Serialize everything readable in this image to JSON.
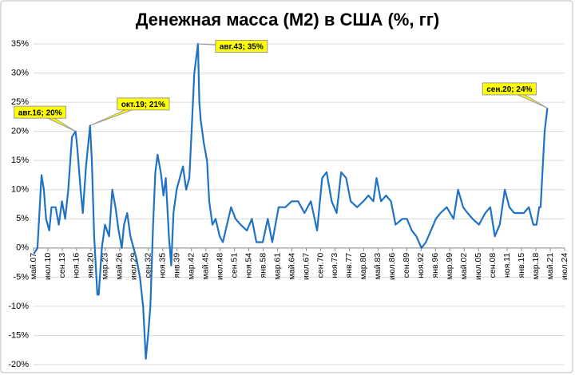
{
  "chart_data": {
    "type": "line",
    "title": "Денежная масса (M2) в США (%, гг)",
    "series": [
      {
        "color": "#1f72c4",
        "x": [
          1907.4,
          1908.2,
          1909.1,
          1909.6,
          1910.1,
          1910.8,
          1911.3,
          1912.2,
          1912.9,
          1913.6,
          1914.3,
          1915.0,
          1915.8,
          1916.6,
          1917.0,
          1917.7,
          1918.2,
          1918.9,
          1919.8,
          1920.2,
          1920.7,
          1921.4,
          1921.7,
          1922.4,
          1923.1,
          1924.0,
          1924.7,
          1925.4,
          1926.1,
          1926.8,
          1927.3,
          1928.0,
          1928.7,
          1929.4,
          1930.1,
          1930.8,
          1931.5,
          1932.1,
          1932.6,
          1933.1,
          1933.7,
          1934.2,
          1934.7,
          1935.4,
          1936.0,
          1936.5,
          1937.2,
          1937.7,
          1938.2,
          1938.9,
          1939.6,
          1940.3,
          1941.0,
          1941.7,
          1942.2,
          1942.8,
          1943.6,
          1943.9,
          1944.2,
          1944.9,
          1945.6,
          1946.1,
          1946.8,
          1947.5,
          1948.4,
          1949.1,
          1950.0,
          1950.9,
          1951.9,
          1953.0,
          1954.4,
          1955.5,
          1956.5,
          1957.9,
          1959.0,
          1960.0,
          1961.4,
          1962.9,
          1964.3,
          1965.7,
          1967.1,
          1968.5,
          1969.9,
          1971.0,
          1972.0,
          1973.1,
          1974.2,
          1975.2,
          1976.3,
          1977.3,
          1978.7,
          1980.1,
          1981.2,
          1982.3,
          1983.0,
          1984.0,
          1985.1,
          1986.2,
          1987.2,
          1988.7,
          1989.7,
          1990.8,
          1991.8,
          1992.9,
          1993.9,
          1995.0,
          1996.1,
          1997.1,
          1998.5,
          2000.0,
          2001.0,
          2002.1,
          2003.1,
          2004.2,
          2005.6,
          2007.0,
          2008.1,
          2009.1,
          2010.2,
          2011.3,
          2012.3,
          2013.4,
          2014.5,
          2015.5,
          2016.6,
          2017.6,
          2018.3,
          2018.9,
          2019.2,
          2020.1,
          2020.7
        ],
        "values": [
          -1,
          0,
          12.5,
          10,
          5,
          3,
          7,
          7,
          4,
          8,
          5,
          10,
          19,
          20,
          17,
          10,
          6,
          14,
          21,
          15,
          2,
          -8,
          -8,
          0,
          4,
          2,
          10,
          7,
          3,
          0,
          4,
          6,
          2,
          0,
          -2,
          -5,
          -10,
          -19,
          -15,
          -10,
          4,
          13,
          16,
          13,
          9,
          12,
          2,
          -3,
          6,
          10,
          12,
          14,
          10,
          12,
          20,
          30,
          35,
          25,
          22,
          18,
          15,
          8,
          4,
          5,
          2,
          1,
          4,
          7,
          5,
          4,
          3,
          5,
          1,
          1,
          5,
          1,
          7,
          7,
          8,
          8,
          6,
          8,
          3,
          12,
          13,
          8,
          6,
          13,
          12,
          8,
          7,
          8,
          9,
          8,
          12,
          8,
          9,
          8,
          4,
          5,
          5,
          3,
          2,
          0,
          1,
          3,
          5,
          6,
          7,
          5,
          10,
          7,
          6,
          5,
          4,
          6,
          7,
          2,
          4,
          10,
          7,
          6,
          6,
          6,
          7,
          4,
          4,
          7,
          7,
          20,
          24
        ]
      }
    ],
    "xlim": [
      1907.33,
      2024.5
    ],
    "xticks": [
      {
        "value": 1907.33,
        "label": "май.07"
      },
      {
        "value": 1910.5,
        "label": "июл.10"
      },
      {
        "value": 1913.67,
        "label": "сен.13"
      },
      {
        "value": 1916.83,
        "label": "ноя.16"
      },
      {
        "value": 1920.0,
        "label": "янв.20"
      },
      {
        "value": 1923.17,
        "label": "мар.23"
      },
      {
        "value": 1926.33,
        "label": "май.26"
      },
      {
        "value": 1929.5,
        "label": "июл.29"
      },
      {
        "value": 1932.67,
        "label": "сен.32"
      },
      {
        "value": 1935.83,
        "label": "ноя.35"
      },
      {
        "value": 1939.0,
        "label": "янв.39"
      },
      {
        "value": 1942.17,
        "label": "мар.42"
      },
      {
        "value": 1945.33,
        "label": "май.45"
      },
      {
        "value": 1948.5,
        "label": "июл.48"
      },
      {
        "value": 1951.67,
        "label": "сен.51"
      },
      {
        "value": 1954.83,
        "label": "ноя.54"
      },
      {
        "value": 1958.0,
        "label": "янв.58"
      },
      {
        "value": 1961.17,
        "label": "мар.61"
      },
      {
        "value": 1964.33,
        "label": "май.64"
      },
      {
        "value": 1967.5,
        "label": "июл.67"
      },
      {
        "value": 1970.67,
        "label": "сен.70"
      },
      {
        "value": 1973.83,
        "label": "ноя.73"
      },
      {
        "value": 1977.0,
        "label": "янв.77"
      },
      {
        "value": 1980.17,
        "label": "мар.80"
      },
      {
        "value": 1983.33,
        "label": "май.83"
      },
      {
        "value": 1986.5,
        "label": "июл.86"
      },
      {
        "value": 1989.67,
        "label": "сен.89"
      },
      {
        "value": 1992.83,
        "label": "ноя.92"
      },
      {
        "value": 1996.0,
        "label": "янв.96"
      },
      {
        "value": 1999.17,
        "label": "мар.99"
      },
      {
        "value": 2002.33,
        "label": "май.02"
      },
      {
        "value": 2005.5,
        "label": "июл.05"
      },
      {
        "value": 2008.67,
        "label": "сен.08"
      },
      {
        "value": 2011.83,
        "label": "ноя.11"
      },
      {
        "value": 2015.0,
        "label": "янв.15"
      },
      {
        "value": 2018.17,
        "label": "мар.18"
      },
      {
        "value": 2021.33,
        "label": "май.21"
      },
      {
        "value": 2024.5,
        "label": "июл.24"
      }
    ],
    "ylim": [
      -20,
      35
    ],
    "yticks": [
      {
        "value": 35,
        "label": "35%"
      },
      {
        "value": 30,
        "label": "30%"
      },
      {
        "value": 25,
        "label": "25%"
      },
      {
        "value": 20,
        "label": "20%"
      },
      {
        "value": 15,
        "label": "15%"
      },
      {
        "value": 10,
        "label": "10%"
      },
      {
        "value": 5,
        "label": "5%"
      },
      {
        "value": 0,
        "label": "0%"
      },
      {
        "value": -5,
        "label": "-5%"
      },
      {
        "value": -10,
        "label": "-10%"
      },
      {
        "value": -15,
        "label": "-15%"
      },
      {
        "value": -20,
        "label": "-20%"
      }
    ],
    "grid": true,
    "annotations": [
      {
        "text": "авг.16; 20%",
        "x": 1916.6,
        "y": 20
      },
      {
        "text": "окт.19; 21%",
        "x": 1919.8,
        "y": 21
      },
      {
        "text": "авг.43; 35%",
        "x": 1943.6,
        "y": 35
      },
      {
        "text": "сен.20; 24%",
        "x": 2020.7,
        "y": 24
      }
    ]
  }
}
